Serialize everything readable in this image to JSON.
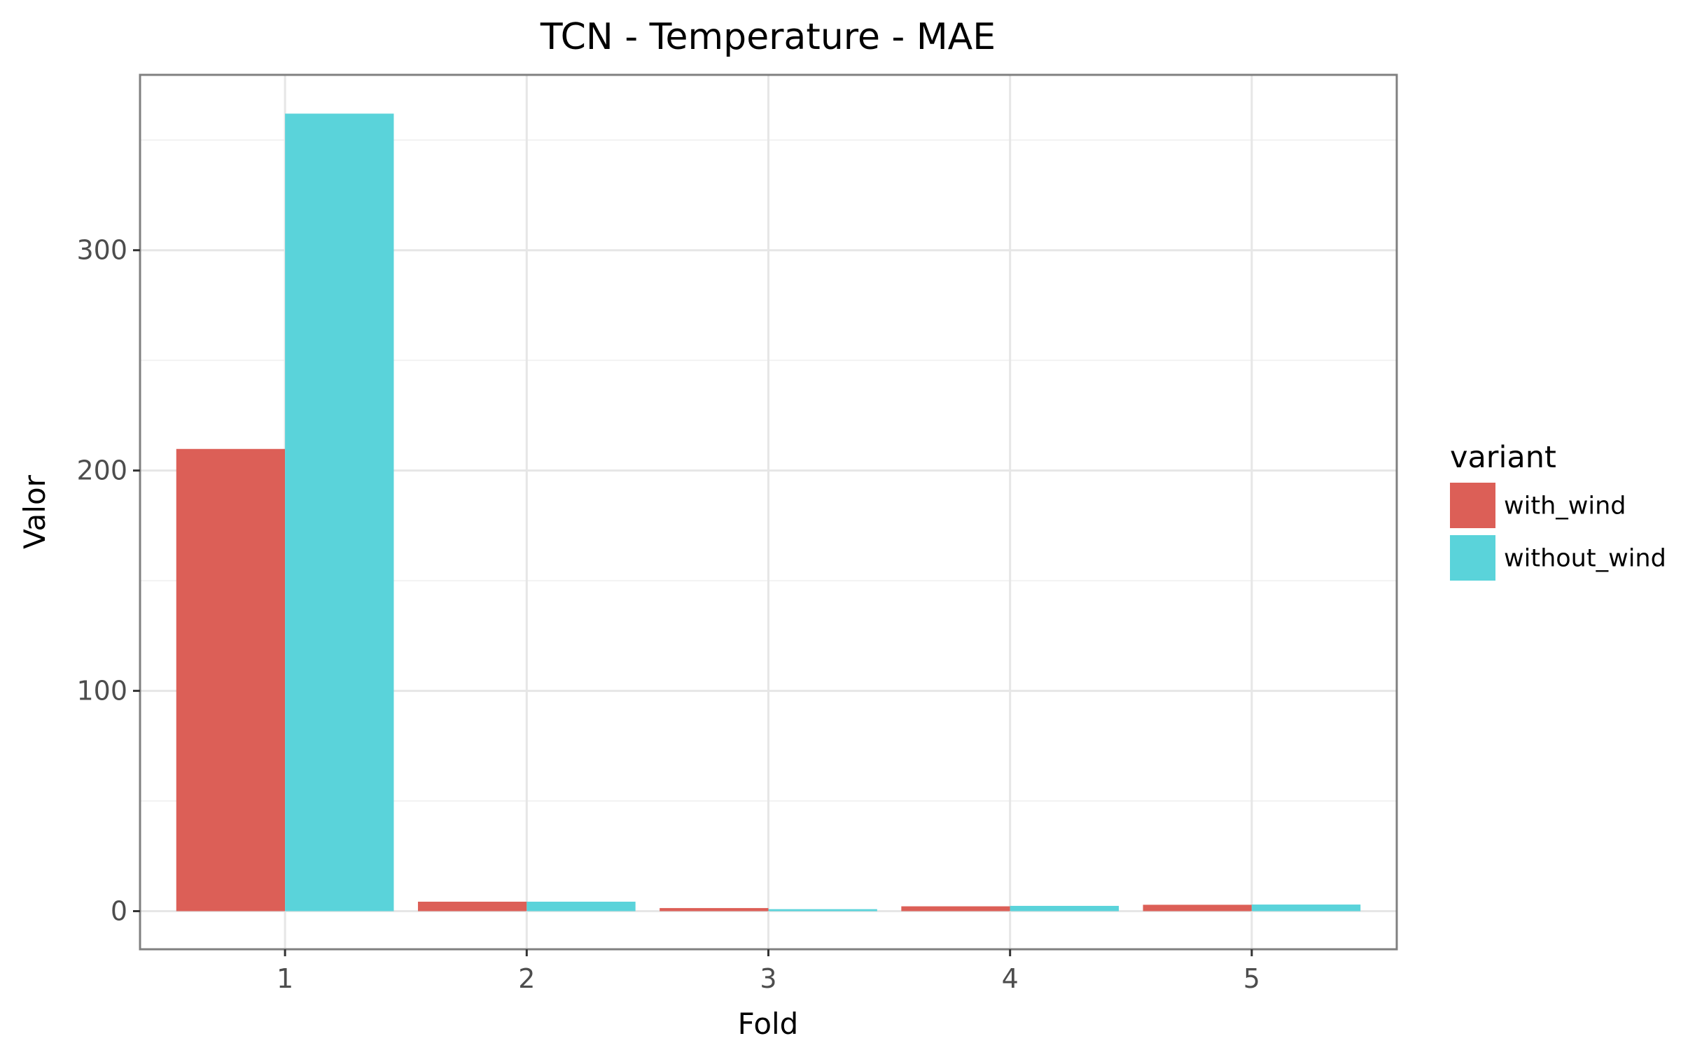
{
  "chart_data": {
    "type": "bar",
    "title": "TCN - Temperature - MAE",
    "xlabel": "Fold",
    "ylabel": "Valor",
    "categories": [
      "1",
      "2",
      "3",
      "4",
      "5"
    ],
    "series": [
      {
        "name": "with_wind",
        "color": "#dc5f57",
        "values": [
          209.8,
          4.3,
          1.4,
          2.2,
          2.9
        ]
      },
      {
        "name": "without_wind",
        "color": "#5ad3da",
        "values": [
          362.0,
          4.3,
          0.9,
          2.4,
          3.0
        ]
      }
    ],
    "ylim": [
      -17.3,
      379.6
    ],
    "yticks": [
      0,
      100,
      200,
      300
    ],
    "ytick_labels": [
      "0",
      "100",
      "200",
      "300"
    ],
    "grid": true,
    "legend": {
      "title": "variant",
      "position": "right"
    }
  }
}
